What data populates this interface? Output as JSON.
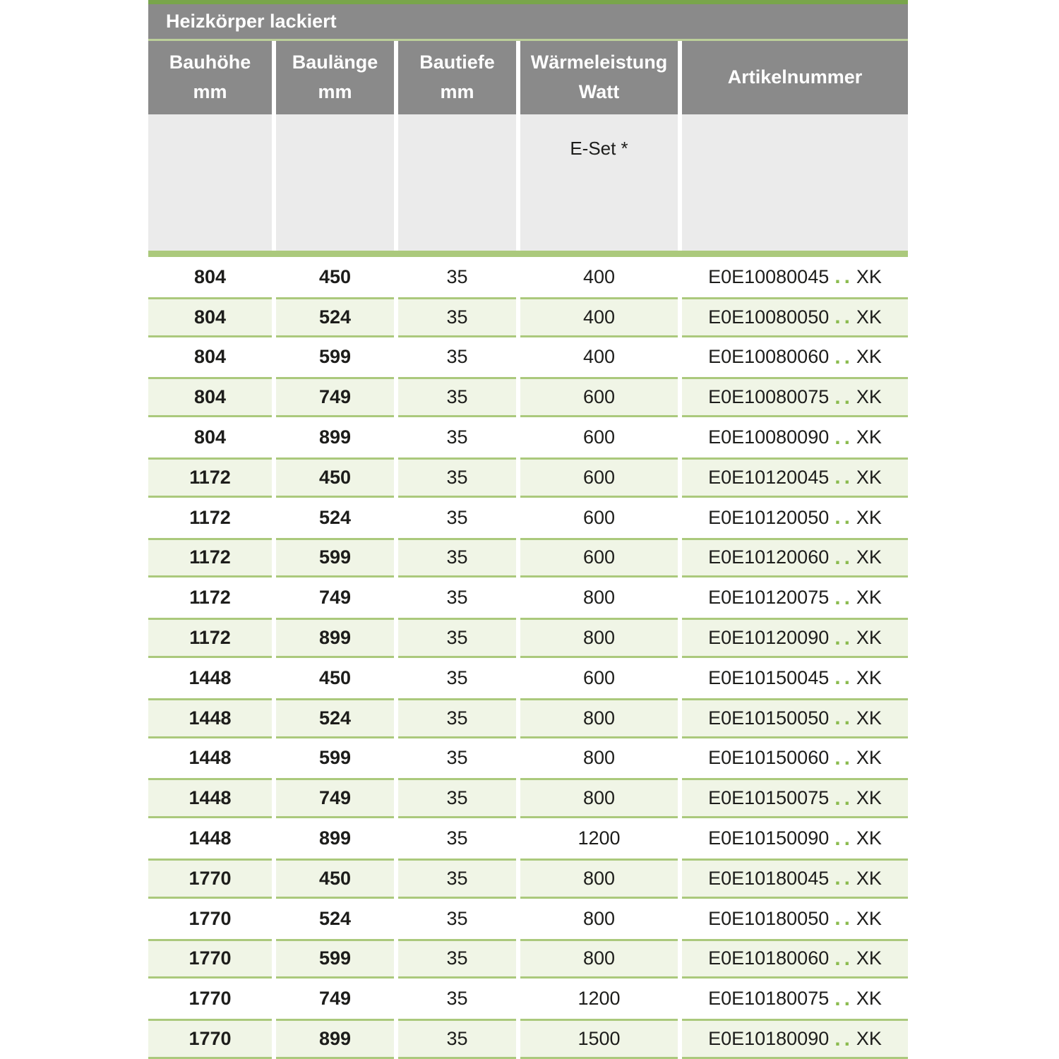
{
  "title": "Heizkörper lackiert",
  "columns": [
    {
      "label": "Bauhöhe",
      "unit": "mm"
    },
    {
      "label": "Baulänge",
      "unit": "mm"
    },
    {
      "label": "Bautiefe",
      "unit": "mm"
    },
    {
      "label": "Wärmeleistung",
      "unit": "Watt"
    },
    {
      "label": "Artikelnummer",
      "unit": ""
    }
  ],
  "subheader_note": "E-Set *",
  "artikel_dots": "..",
  "artikel_suffix": "XK",
  "colors": {
    "header_gray": "#8a8a8a",
    "top_strip_green": "#79a54b",
    "pale_line_green": "#bccf99",
    "subheader_gray": "#ebebeb",
    "separator_green": "#abc97c",
    "row_green_bg": "#f0f5e6",
    "dot_green": "#8bbb4e",
    "text": "#1d1d1b"
  },
  "rows": [
    {
      "bauhoehe": "804",
      "baulaenge": "450",
      "bautiefe": "35",
      "watt": "400",
      "artikel": "E0E10080045"
    },
    {
      "bauhoehe": "804",
      "baulaenge": "524",
      "bautiefe": "35",
      "watt": "400",
      "artikel": "E0E10080050"
    },
    {
      "bauhoehe": "804",
      "baulaenge": "599",
      "bautiefe": "35",
      "watt": "400",
      "artikel": "E0E10080060"
    },
    {
      "bauhoehe": "804",
      "baulaenge": "749",
      "bautiefe": "35",
      "watt": "600",
      "artikel": "E0E10080075"
    },
    {
      "bauhoehe": "804",
      "baulaenge": "899",
      "bautiefe": "35",
      "watt": "600",
      "artikel": "E0E10080090"
    },
    {
      "bauhoehe": "1172",
      "baulaenge": "450",
      "bautiefe": "35",
      "watt": "600",
      "artikel": "E0E10120045"
    },
    {
      "bauhoehe": "1172",
      "baulaenge": "524",
      "bautiefe": "35",
      "watt": "600",
      "artikel": "E0E10120050"
    },
    {
      "bauhoehe": "1172",
      "baulaenge": "599",
      "bautiefe": "35",
      "watt": "600",
      "artikel": "E0E10120060"
    },
    {
      "bauhoehe": "1172",
      "baulaenge": "749",
      "bautiefe": "35",
      "watt": "800",
      "artikel": "E0E10120075"
    },
    {
      "bauhoehe": "1172",
      "baulaenge": "899",
      "bautiefe": "35",
      "watt": "800",
      "artikel": "E0E10120090"
    },
    {
      "bauhoehe": "1448",
      "baulaenge": "450",
      "bautiefe": "35",
      "watt": "600",
      "artikel": "E0E10150045"
    },
    {
      "bauhoehe": "1448",
      "baulaenge": "524",
      "bautiefe": "35",
      "watt": "800",
      "artikel": "E0E10150050"
    },
    {
      "bauhoehe": "1448",
      "baulaenge": "599",
      "bautiefe": "35",
      "watt": "800",
      "artikel": "E0E10150060"
    },
    {
      "bauhoehe": "1448",
      "baulaenge": "749",
      "bautiefe": "35",
      "watt": "800",
      "artikel": "E0E10150075"
    },
    {
      "bauhoehe": "1448",
      "baulaenge": "899",
      "bautiefe": "35",
      "watt": "1200",
      "artikel": "E0E10150090"
    },
    {
      "bauhoehe": "1770",
      "baulaenge": "450",
      "bautiefe": "35",
      "watt": "800",
      "artikel": "E0E10180045"
    },
    {
      "bauhoehe": "1770",
      "baulaenge": "524",
      "bautiefe": "35",
      "watt": "800",
      "artikel": "E0E10180050"
    },
    {
      "bauhoehe": "1770",
      "baulaenge": "599",
      "bautiefe": "35",
      "watt": "800",
      "artikel": "E0E10180060"
    },
    {
      "bauhoehe": "1770",
      "baulaenge": "749",
      "bautiefe": "35",
      "watt": "1200",
      "artikel": "E0E10180075"
    },
    {
      "bauhoehe": "1770",
      "baulaenge": "899",
      "bautiefe": "35",
      "watt": "1500",
      "artikel": "E0E10180090"
    }
  ]
}
